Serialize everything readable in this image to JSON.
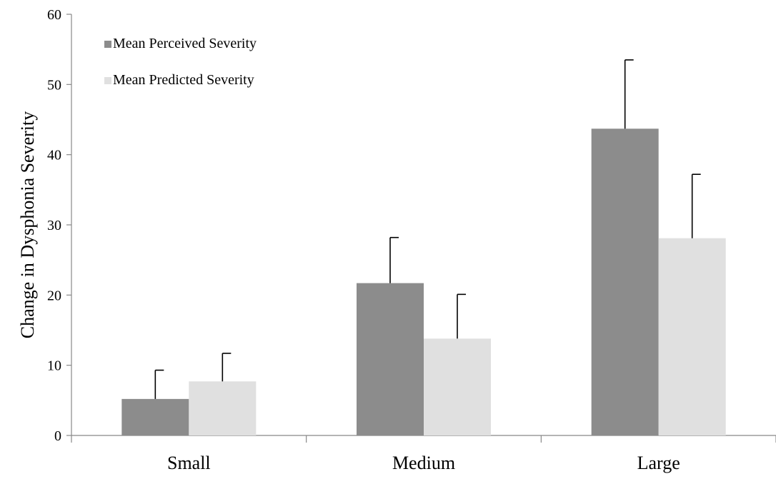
{
  "chart_data": {
    "type": "bar",
    "title": "",
    "xlabel": "",
    "ylabel": "Change in Dysphonia Severity",
    "categories": [
      "Small",
      "Medium",
      "Large"
    ],
    "ylim": [
      0,
      60
    ],
    "yticks": [
      0,
      10,
      20,
      30,
      40,
      50,
      60
    ],
    "grid": false,
    "legend_position": "top-left",
    "series": [
      {
        "name": "Mean Perceived Severity",
        "color": "#8c8c8c",
        "values": [
          5.2,
          21.7,
          43.7
        ],
        "error_upper": [
          4.1,
          6.5,
          9.8
        ]
      },
      {
        "name": "Mean Predicted Severity",
        "color": "#e0e0e0",
        "values": [
          7.7,
          13.8,
          28.1
        ],
        "error_upper": [
          4.0,
          6.3,
          9.1
        ]
      }
    ]
  }
}
